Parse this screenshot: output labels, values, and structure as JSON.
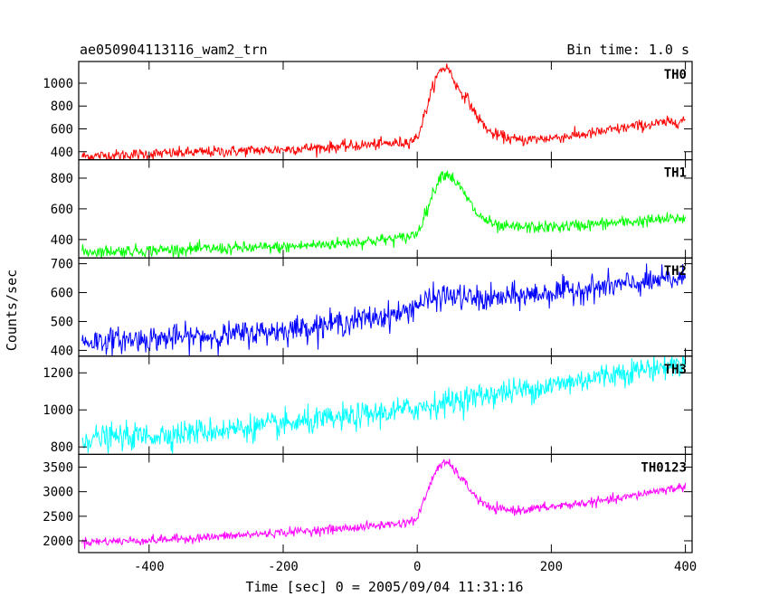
{
  "chart_data": {
    "type": "line",
    "title": "ae050904113116_wam2_trn",
    "bin_time": "Bin time: 1.0 s",
    "xlabel": "Time [sec] 0 = 2005/09/04 11:31:16",
    "ylabel": "Counts/sec",
    "xlim": [
      -505,
      410
    ],
    "x_ticks": [
      -400,
      -200,
      0,
      200,
      400
    ],
    "x_range": [
      -500,
      400
    ],
    "time_step": 1.0,
    "panels": [
      {
        "label": "TH0",
        "color": "#ff0000",
        "ylim": [
          330,
          1190
        ],
        "y_ticks": [
          400,
          600,
          800,
          1000
        ],
        "noise": 25,
        "profile_points": [
          [
            -500,
            360
          ],
          [
            -400,
            380
          ],
          [
            -200,
            420
          ],
          [
            -100,
            450
          ],
          [
            -20,
            480
          ],
          [
            0,
            520
          ],
          [
            15,
            800
          ],
          [
            25,
            1000
          ],
          [
            35,
            1120
          ],
          [
            45,
            1140
          ],
          [
            50,
            1090
          ],
          [
            60,
            960
          ],
          [
            75,
            860
          ],
          [
            90,
            700
          ],
          [
            110,
            560
          ],
          [
            150,
            500
          ],
          [
            200,
            520
          ],
          [
            260,
            560
          ],
          [
            320,
            620
          ],
          [
            380,
            660
          ],
          [
            400,
            680
          ]
        ]
      },
      {
        "label": "TH1",
        "color": "#00ff00",
        "ylim": [
          280,
          920
        ],
        "y_ticks": [
          400,
          600,
          800
        ],
        "noise": 20,
        "profile_points": [
          [
            -500,
            320
          ],
          [
            -400,
            330
          ],
          [
            -200,
            350
          ],
          [
            -100,
            380
          ],
          [
            -20,
            410
          ],
          [
            0,
            440
          ],
          [
            15,
            600
          ],
          [
            25,
            720
          ],
          [
            35,
            820
          ],
          [
            45,
            830
          ],
          [
            55,
            790
          ],
          [
            70,
            700
          ],
          [
            90,
            560
          ],
          [
            120,
            480
          ],
          [
            200,
            480
          ],
          [
            300,
            510
          ],
          [
            400,
            540
          ]
        ]
      },
      {
        "label": "TH2",
        "color": "#0000ff",
        "ylim": [
          380,
          720
        ],
        "y_ticks": [
          400,
          500,
          600,
          700
        ],
        "noise": 22,
        "profile_points": [
          [
            -500,
            430
          ],
          [
            -400,
            440
          ],
          [
            -300,
            450
          ],
          [
            -200,
            470
          ],
          [
            -100,
            500
          ],
          [
            -20,
            530
          ],
          [
            0,
            560
          ],
          [
            40,
            590
          ],
          [
            100,
            575
          ],
          [
            200,
            600
          ],
          [
            300,
            625
          ],
          [
            400,
            650
          ]
        ]
      },
      {
        "label": "TH3",
        "color": "#00ffff",
        "ylim": [
          760,
          1290
        ],
        "y_ticks": [
          800,
          1000,
          1200
        ],
        "noise": 35,
        "profile_points": [
          [
            -500,
            845
          ],
          [
            -400,
            860
          ],
          [
            -300,
            890
          ],
          [
            -200,
            920
          ],
          [
            -100,
            960
          ],
          [
            0,
            1010
          ],
          [
            100,
            1080
          ],
          [
            200,
            1130
          ],
          [
            300,
            1200
          ],
          [
            400,
            1250
          ]
        ]
      },
      {
        "label": "TH0123",
        "color": "#ff00ff",
        "ylim": [
          1760,
          3760
        ],
        "y_ticks": [
          2000,
          2500,
          3000,
          3500
        ],
        "noise": 45,
        "profile_points": [
          [
            -500,
            1980
          ],
          [
            -400,
            2010
          ],
          [
            -300,
            2080
          ],
          [
            -200,
            2170
          ],
          [
            -100,
            2260
          ],
          [
            -20,
            2360
          ],
          [
            0,
            2450
          ],
          [
            15,
            3000
          ],
          [
            30,
            3500
          ],
          [
            45,
            3600
          ],
          [
            55,
            3450
          ],
          [
            70,
            3200
          ],
          [
            90,
            2850
          ],
          [
            110,
            2650
          ],
          [
            150,
            2620
          ],
          [
            200,
            2690
          ],
          [
            300,
            2850
          ],
          [
            350,
            3000
          ],
          [
            400,
            3100
          ]
        ]
      }
    ]
  }
}
